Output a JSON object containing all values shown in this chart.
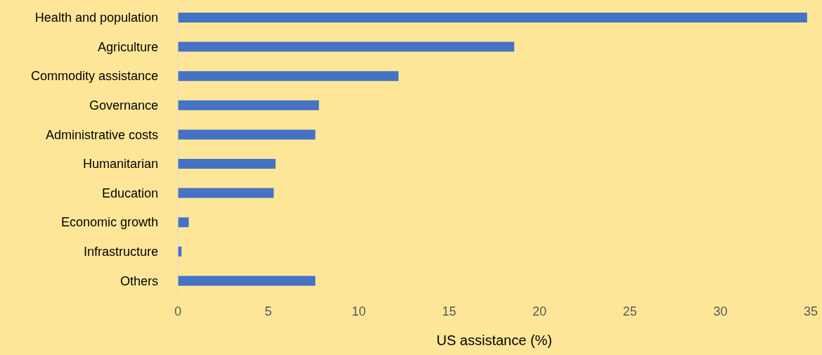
{
  "chart_data": {
    "type": "bar",
    "orientation": "horizontal",
    "xlabel": "US assistance (%)",
    "categories": [
      "Health and population",
      "Agriculture",
      "Commodity assistance",
      "Governance",
      "Administrative costs",
      "Humanitarian",
      "Education",
      "Economic growth",
      "Infrastructure",
      "Others"
    ],
    "values": [
      34.8,
      18.6,
      12.2,
      7.8,
      7.6,
      5.4,
      5.3,
      0.6,
      0.2,
      7.6
    ],
    "color": "#4472c4",
    "xlim": [
      0,
      35
    ],
    "xticks": [
      0,
      5,
      10,
      15,
      20,
      25,
      30,
      35
    ],
    "grid": false,
    "legend": false
  }
}
